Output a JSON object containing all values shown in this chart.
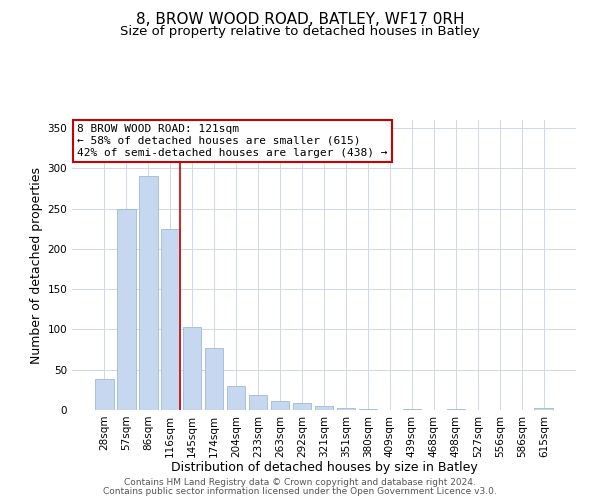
{
  "title": "8, BROW WOOD ROAD, BATLEY, WF17 0RH",
  "subtitle": "Size of property relative to detached houses in Batley",
  "xlabel": "Distribution of detached houses by size in Batley",
  "ylabel": "Number of detached properties",
  "bar_labels": [
    "28sqm",
    "57sqm",
    "86sqm",
    "116sqm",
    "145sqm",
    "174sqm",
    "204sqm",
    "233sqm",
    "263sqm",
    "292sqm",
    "321sqm",
    "351sqm",
    "380sqm",
    "409sqm",
    "439sqm",
    "468sqm",
    "498sqm",
    "527sqm",
    "556sqm",
    "586sqm",
    "615sqm"
  ],
  "bar_values": [
    39,
    250,
    291,
    225,
    103,
    77,
    30,
    19,
    11,
    9,
    5,
    2,
    1,
    0,
    1,
    0,
    1,
    0,
    0,
    0,
    2
  ],
  "bar_color": "#c5d8f0",
  "bar_edgecolor": "#a0b8d8",
  "vline_index": 3,
  "vline_color": "#cc0000",
  "annotation_title": "8 BROW WOOD ROAD: 121sqm",
  "annotation_line1": "← 58% of detached houses are smaller (615)",
  "annotation_line2": "42% of semi-detached houses are larger (438) →",
  "annotation_box_edgecolor": "#cc0000",
  "annotation_box_facecolor": "#ffffff",
  "ylim": [
    0,
    360
  ],
  "yticks": [
    0,
    50,
    100,
    150,
    200,
    250,
    300,
    350
  ],
  "footer1": "Contains HM Land Registry data © Crown copyright and database right 2024.",
  "footer2": "Contains public sector information licensed under the Open Government Licence v3.0.",
  "background_color": "#ffffff",
  "grid_color": "#d0d8e8",
  "title_fontsize": 11,
  "subtitle_fontsize": 9.5,
  "axis_label_fontsize": 9,
  "tick_fontsize": 7.5,
  "annotation_fontsize": 8,
  "footer_fontsize": 6.5
}
